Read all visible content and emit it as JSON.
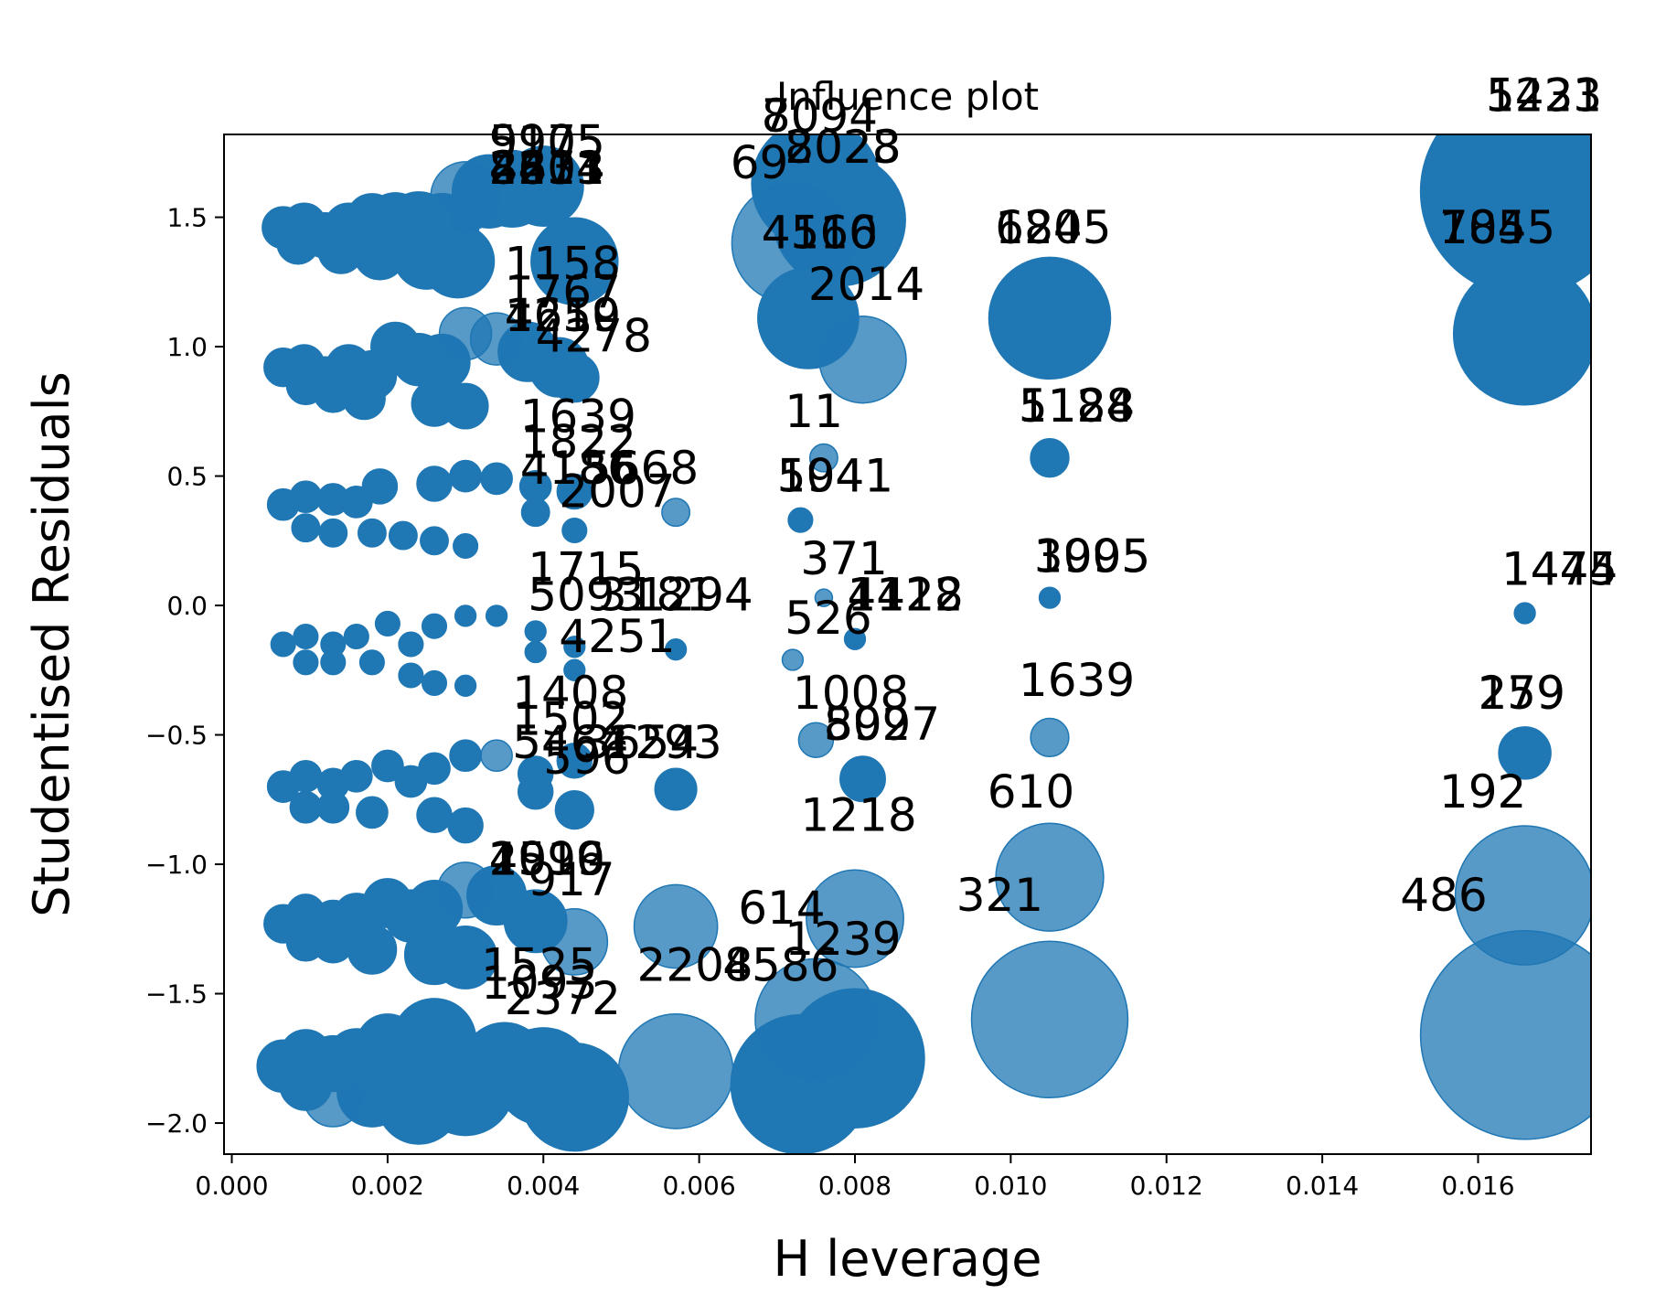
{
  "chart_data": {
    "type": "scatter",
    "title": "Influence plot",
    "xlabel": "H leverage",
    "ylabel": "Studentised Residuals",
    "xlim": [
      -0.0001,
      0.01745
    ],
    "ylim": [
      -2.12,
      1.82
    ],
    "xticks": [
      0.0,
      0.002,
      0.004,
      0.006,
      0.008,
      0.01,
      0.012,
      0.014,
      0.016
    ],
    "xtick_labels": [
      "0.000",
      "0.002",
      "0.004",
      "0.006",
      "0.008",
      "0.010",
      "0.012",
      "0.014",
      "0.016"
    ],
    "yticks": [
      -2.0,
      -1.5,
      -1.0,
      -0.5,
      0.0,
      0.5,
      1.0,
      1.5
    ],
    "ytick_labels": [
      "−2.0",
      "−1.5",
      "−1.0",
      "−0.5",
      "0.0",
      "0.5",
      "1.0",
      "1.5"
    ],
    "grid": false,
    "marker_color": "#1f77b4",
    "points": [
      {
        "x": 0.00066,
        "y": 1.46,
        "s": 0.24
      },
      {
        "x": 0.00093,
        "y": 1.47,
        "s": 0.25
      },
      {
        "x": 0.0012,
        "y": 1.43,
        "s": 0.26
      },
      {
        "x": 0.0015,
        "y": 1.46,
        "s": 0.28
      },
      {
        "x": 0.0018,
        "y": 1.49,
        "s": 0.3
      },
      {
        "x": 0.0021,
        "y": 1.48,
        "s": 0.34
      },
      {
        "x": 0.0024,
        "y": 1.47,
        "s": 0.38
      },
      {
        "x": 0.0027,
        "y": 1.45,
        "s": 0.42
      },
      {
        "x": 0.003,
        "y": 1.58,
        "s": 0.4,
        "a": 0.75
      },
      {
        "x": 0.0033,
        "y": 1.6,
        "s": 0.42
      },
      {
        "x": 0.0036,
        "y": 1.61,
        "s": 0.44
      },
      {
        "x": 0.004,
        "y": 1.62,
        "s": 0.46
      },
      {
        "x": 0.00085,
        "y": 1.4,
        "s": 0.24
      },
      {
        "x": 0.0014,
        "y": 1.37,
        "s": 0.26
      },
      {
        "x": 0.0019,
        "y": 1.36,
        "s": 0.3
      },
      {
        "x": 0.0025,
        "y": 1.35,
        "s": 0.38
      },
      {
        "x": 0.0029,
        "y": 1.33,
        "s": 0.42
      },
      {
        "x": 0.0044,
        "y": 1.33,
        "s": 0.5
      },
      {
        "x": 0.0072,
        "y": 1.4,
        "s": 0.7,
        "a": 0.75
      },
      {
        "x": 0.0075,
        "y": 1.63,
        "s": 0.74
      },
      {
        "x": 0.0078,
        "y": 1.49,
        "s": 0.76
      },
      {
        "x": 0.0074,
        "y": 1.11,
        "s": 0.58
      },
      {
        "x": 0.0081,
        "y": 0.95,
        "s": 0.5,
        "a": 0.75
      },
      {
        "x": 0.0105,
        "y": 1.11,
        "s": 0.7
      },
      {
        "x": 0.0166,
        "y": 1.6,
        "s": 1.2
      },
      {
        "x": 0.0166,
        "y": 1.05,
        "s": 0.82
      },
      {
        "x": 0.00066,
        "y": 0.92,
        "s": 0.22
      },
      {
        "x": 0.00093,
        "y": 0.93,
        "s": 0.23
      },
      {
        "x": 0.0012,
        "y": 0.88,
        "s": 0.24
      },
      {
        "x": 0.0015,
        "y": 0.92,
        "s": 0.26
      },
      {
        "x": 0.0018,
        "y": 0.89,
        "s": 0.28
      },
      {
        "x": 0.0021,
        "y": 1.0,
        "s": 0.28
      },
      {
        "x": 0.0024,
        "y": 0.95,
        "s": 0.3
      },
      {
        "x": 0.0027,
        "y": 0.94,
        "s": 0.32
      },
      {
        "x": 0.003,
        "y": 1.05,
        "s": 0.3,
        "a": 0.75
      },
      {
        "x": 0.0034,
        "y": 1.03,
        "s": 0.3,
        "a": 0.75
      },
      {
        "x": 0.0038,
        "y": 0.98,
        "s": 0.34
      },
      {
        "x": 0.0042,
        "y": 0.92,
        "s": 0.34
      },
      {
        "x": 0.00095,
        "y": 0.85,
        "s": 0.22
      },
      {
        "x": 0.0013,
        "y": 0.82,
        "s": 0.22
      },
      {
        "x": 0.0017,
        "y": 0.8,
        "s": 0.24
      },
      {
        "x": 0.0026,
        "y": 0.78,
        "s": 0.26
      },
      {
        "x": 0.003,
        "y": 0.77,
        "s": 0.26
      },
      {
        "x": 0.0044,
        "y": 0.88,
        "s": 0.28
      },
      {
        "x": 0.00066,
        "y": 0.39,
        "s": 0.18
      },
      {
        "x": 0.00095,
        "y": 0.42,
        "s": 0.18
      },
      {
        "x": 0.0013,
        "y": 0.41,
        "s": 0.18
      },
      {
        "x": 0.0016,
        "y": 0.4,
        "s": 0.18
      },
      {
        "x": 0.0019,
        "y": 0.46,
        "s": 0.2
      },
      {
        "x": 0.0026,
        "y": 0.47,
        "s": 0.2
      },
      {
        "x": 0.003,
        "y": 0.5,
        "s": 0.18
      },
      {
        "x": 0.0034,
        "y": 0.49,
        "s": 0.18
      },
      {
        "x": 0.0039,
        "y": 0.46,
        "s": 0.18
      },
      {
        "x": 0.0044,
        "y": 0.44,
        "s": 0.2
      },
      {
        "x": 0.00095,
        "y": 0.3,
        "s": 0.16
      },
      {
        "x": 0.0013,
        "y": 0.28,
        "s": 0.16
      },
      {
        "x": 0.0018,
        "y": 0.28,
        "s": 0.16
      },
      {
        "x": 0.0022,
        "y": 0.27,
        "s": 0.16
      },
      {
        "x": 0.0026,
        "y": 0.25,
        "s": 0.16
      },
      {
        "x": 0.003,
        "y": 0.23,
        "s": 0.14
      },
      {
        "x": 0.0039,
        "y": 0.36,
        "s": 0.16
      },
      {
        "x": 0.0044,
        "y": 0.29,
        "s": 0.14
      },
      {
        "x": 0.0057,
        "y": 0.36,
        "s": 0.16,
        "a": 0.75
      },
      {
        "x": 0.0073,
        "y": 0.33,
        "s": 0.14
      },
      {
        "x": 0.0076,
        "y": 0.57,
        "s": 0.16,
        "a": 0.75
      },
      {
        "x": 0.0105,
        "y": 0.57,
        "s": 0.22
      },
      {
        "x": 0.00066,
        "y": -0.15,
        "s": 0.14
      },
      {
        "x": 0.00095,
        "y": -0.12,
        "s": 0.14
      },
      {
        "x": 0.0013,
        "y": -0.15,
        "s": 0.14
      },
      {
        "x": 0.0016,
        "y": -0.12,
        "s": 0.14
      },
      {
        "x": 0.002,
        "y": -0.07,
        "s": 0.14
      },
      {
        "x": 0.0023,
        "y": -0.15,
        "s": 0.14
      },
      {
        "x": 0.0026,
        "y": -0.08,
        "s": 0.14
      },
      {
        "x": 0.003,
        "y": -0.04,
        "s": 0.12
      },
      {
        "x": 0.0034,
        "y": -0.04,
        "s": 0.12
      },
      {
        "x": 0.0039,
        "y": -0.1,
        "s": 0.12
      },
      {
        "x": 0.0044,
        "y": -0.16,
        "s": 0.12
      },
      {
        "x": 0.00095,
        "y": -0.22,
        "s": 0.14
      },
      {
        "x": 0.0013,
        "y": -0.22,
        "s": 0.14
      },
      {
        "x": 0.0018,
        "y": -0.22,
        "s": 0.14
      },
      {
        "x": 0.0023,
        "y": -0.27,
        "s": 0.14
      },
      {
        "x": 0.0026,
        "y": -0.3,
        "s": 0.14
      },
      {
        "x": 0.003,
        "y": -0.31,
        "s": 0.12
      },
      {
        "x": 0.0039,
        "y": -0.18,
        "s": 0.12
      },
      {
        "x": 0.0044,
        "y": -0.25,
        "s": 0.12
      },
      {
        "x": 0.0057,
        "y": -0.17,
        "s": 0.12
      },
      {
        "x": 0.0072,
        "y": -0.21,
        "s": 0.12,
        "a": 0.75
      },
      {
        "x": 0.0076,
        "y": 0.03,
        "s": 0.1,
        "a": 0.75
      },
      {
        "x": 0.008,
        "y": -0.13,
        "s": 0.12
      },
      {
        "x": 0.0105,
        "y": 0.03,
        "s": 0.12
      },
      {
        "x": 0.0166,
        "y": -0.03,
        "s": 0.12
      },
      {
        "x": 0.00066,
        "y": -0.7,
        "s": 0.18
      },
      {
        "x": 0.00095,
        "y": -0.66,
        "s": 0.18
      },
      {
        "x": 0.0013,
        "y": -0.69,
        "s": 0.18
      },
      {
        "x": 0.0016,
        "y": -0.66,
        "s": 0.18
      },
      {
        "x": 0.002,
        "y": -0.62,
        "s": 0.18
      },
      {
        "x": 0.0023,
        "y": -0.68,
        "s": 0.18
      },
      {
        "x": 0.0026,
        "y": -0.63,
        "s": 0.18
      },
      {
        "x": 0.003,
        "y": -0.58,
        "s": 0.18
      },
      {
        "x": 0.0034,
        "y": -0.58,
        "s": 0.18,
        "a": 0.75
      },
      {
        "x": 0.0039,
        "y": -0.65,
        "s": 0.2
      },
      {
        "x": 0.0044,
        "y": -0.6,
        "s": 0.2
      },
      {
        "x": 0.00095,
        "y": -0.78,
        "s": 0.18
      },
      {
        "x": 0.0013,
        "y": -0.78,
        "s": 0.18
      },
      {
        "x": 0.0018,
        "y": -0.8,
        "s": 0.18
      },
      {
        "x": 0.0026,
        "y": -0.81,
        "s": 0.2
      },
      {
        "x": 0.003,
        "y": -0.85,
        "s": 0.2
      },
      {
        "x": 0.0039,
        "y": -0.72,
        "s": 0.2
      },
      {
        "x": 0.0044,
        "y": -0.79,
        "s": 0.22
      },
      {
        "x": 0.0057,
        "y": -0.71,
        "s": 0.24
      },
      {
        "x": 0.0075,
        "y": -0.52,
        "s": 0.2,
        "a": 0.75
      },
      {
        "x": 0.0081,
        "y": -0.67,
        "s": 0.26
      },
      {
        "x": 0.0105,
        "y": -0.51,
        "s": 0.22,
        "a": 0.75
      },
      {
        "x": 0.0166,
        "y": -0.57,
        "s": 0.3
      },
      {
        "x": 0.00066,
        "y": -1.23,
        "s": 0.22
      },
      {
        "x": 0.00095,
        "y": -1.19,
        "s": 0.22
      },
      {
        "x": 0.0013,
        "y": -1.22,
        "s": 0.24
      },
      {
        "x": 0.0016,
        "y": -1.2,
        "s": 0.26
      },
      {
        "x": 0.002,
        "y": -1.15,
        "s": 0.28
      },
      {
        "x": 0.0023,
        "y": -1.2,
        "s": 0.3
      },
      {
        "x": 0.0026,
        "y": -1.17,
        "s": 0.32
      },
      {
        "x": 0.003,
        "y": -1.1,
        "s": 0.32,
        "a": 0.75
      },
      {
        "x": 0.0034,
        "y": -1.12,
        "s": 0.34
      },
      {
        "x": 0.0039,
        "y": -1.22,
        "s": 0.36
      },
      {
        "x": 0.0044,
        "y": -1.3,
        "s": 0.38,
        "a": 0.75
      },
      {
        "x": 0.00095,
        "y": -1.3,
        "s": 0.22
      },
      {
        "x": 0.0013,
        "y": -1.3,
        "s": 0.24
      },
      {
        "x": 0.0018,
        "y": -1.33,
        "s": 0.28
      },
      {
        "x": 0.0026,
        "y": -1.35,
        "s": 0.34
      },
      {
        "x": 0.003,
        "y": -1.36,
        "s": 0.36
      },
      {
        "x": 0.0057,
        "y": -1.24,
        "s": 0.48,
        "a": 0.75
      },
      {
        "x": 0.008,
        "y": -1.21,
        "s": 0.56,
        "a": 0.75
      },
      {
        "x": 0.0105,
        "y": -1.05,
        "s": 0.62,
        "a": 0.75
      },
      {
        "x": 0.0166,
        "y": -1.12,
        "s": 0.8,
        "a": 0.75
      },
      {
        "x": 0.00066,
        "y": -1.78,
        "s": 0.3
      },
      {
        "x": 0.00095,
        "y": -1.74,
        "s": 0.3
      },
      {
        "x": 0.0013,
        "y": -1.77,
        "s": 0.32
      },
      {
        "x": 0.0016,
        "y": -1.75,
        "s": 0.34
      },
      {
        "x": 0.002,
        "y": -1.7,
        "s": 0.36
      },
      {
        "x": 0.0023,
        "y": -1.73,
        "s": 0.4
      },
      {
        "x": 0.0026,
        "y": -1.68,
        "s": 0.48
      },
      {
        "x": 0.003,
        "y": -1.86,
        "s": 0.56
      },
      {
        "x": 0.0035,
        "y": -1.78,
        "s": 0.5
      },
      {
        "x": 0.004,
        "y": -1.82,
        "s": 0.56
      },
      {
        "x": 0.0044,
        "y": -1.9,
        "s": 0.62
      },
      {
        "x": 0.00095,
        "y": -1.85,
        "s": 0.3
      },
      {
        "x": 0.0013,
        "y": -1.9,
        "s": 0.34,
        "a": 0.75
      },
      {
        "x": 0.0018,
        "y": -1.88,
        "s": 0.4
      },
      {
        "x": 0.0024,
        "y": -1.92,
        "s": 0.48
      },
      {
        "x": 0.0057,
        "y": -1.8,
        "s": 0.66,
        "a": 0.75
      },
      {
        "x": 0.0075,
        "y": -1.6,
        "s": 0.7,
        "a": 0.75
      },
      {
        "x": 0.0073,
        "y": -1.85,
        "s": 0.8
      },
      {
        "x": 0.008,
        "y": -1.75,
        "s": 0.8
      },
      {
        "x": 0.0105,
        "y": -1.6,
        "s": 0.9,
        "a": 0.75
      },
      {
        "x": 0.0166,
        "y": -1.66,
        "s": 1.2,
        "a": 0.75
      }
    ],
    "annotations": [
      {
        "text": "5231",
        "x": 0.0161,
        "y": 1.91
      },
      {
        "text": "1423",
        "x": 0.0161,
        "y": 1.91
      },
      {
        "text": "8094",
        "x": 0.0068,
        "y": 1.83
      },
      {
        "text": "709",
        "x": 0.0068,
        "y": 1.83
      },
      {
        "text": "5905",
        "x": 0.0033,
        "y": 1.73
      },
      {
        "text": "9175",
        "x": 0.0033,
        "y": 1.73
      },
      {
        "text": "8023",
        "x": 0.0071,
        "y": 1.71
      },
      {
        "text": "2028",
        "x": 0.0071,
        "y": 1.71
      },
      {
        "text": "69",
        "x": 0.0064,
        "y": 1.65
      },
      {
        "text": "8403",
        "x": 0.0033,
        "y": 1.63
      },
      {
        "text": "2834",
        "x": 0.0033,
        "y": 1.63
      },
      {
        "text": "4674",
        "x": 0.0033,
        "y": 1.63
      },
      {
        "text": "2211",
        "x": 0.0033,
        "y": 1.63
      },
      {
        "text": "624",
        "x": 0.0098,
        "y": 1.4
      },
      {
        "text": "1805",
        "x": 0.0098,
        "y": 1.4
      },
      {
        "text": "785",
        "x": 0.0155,
        "y": 1.4
      },
      {
        "text": "1045",
        "x": 0.0155,
        "y": 1.4
      },
      {
        "text": "4516",
        "x": 0.0068,
        "y": 1.38
      },
      {
        "text": "4160",
        "x": 0.0068,
        "y": 1.38
      },
      {
        "text": "1158",
        "x": 0.0035,
        "y": 1.26
      },
      {
        "text": "2014",
        "x": 0.0074,
        "y": 1.18
      },
      {
        "text": "1767",
        "x": 0.0035,
        "y": 1.15
      },
      {
        "text": "4219",
        "x": 0.0035,
        "y": 1.06
      },
      {
        "text": "1650",
        "x": 0.0035,
        "y": 1.06
      },
      {
        "text": "4278",
        "x": 0.0039,
        "y": 0.98
      },
      {
        "text": "5128",
        "x": 0.0101,
        "y": 0.71
      },
      {
        "text": "1184",
        "x": 0.0101,
        "y": 0.71
      },
      {
        "text": "11",
        "x": 0.0071,
        "y": 0.69
      },
      {
        "text": "1639",
        "x": 0.0037,
        "y": 0.67
      },
      {
        "text": "1822",
        "x": 0.0037,
        "y": 0.57
      },
      {
        "text": "4186",
        "x": 0.0037,
        "y": 0.47
      },
      {
        "text": "5668",
        "x": 0.0045,
        "y": 0.47
      },
      {
        "text": "5941",
        "x": 0.007,
        "y": 0.44
      },
      {
        "text": "1041",
        "x": 0.007,
        "y": 0.44
      },
      {
        "text": "2007",
        "x": 0.0042,
        "y": 0.38
      },
      {
        "text": "1995",
        "x": 0.0103,
        "y": 0.13
      },
      {
        "text": "3005",
        "x": 0.0103,
        "y": 0.13
      },
      {
        "text": "371",
        "x": 0.0073,
        "y": 0.12
      },
      {
        "text": "1715",
        "x": 0.0038,
        "y": 0.08
      },
      {
        "text": "1444",
        "x": 0.0163,
        "y": 0.08
      },
      {
        "text": "1475",
        "x": 0.0163,
        "y": 0.08
      },
      {
        "text": "4112",
        "x": 0.0079,
        "y": -0.02
      },
      {
        "text": "1428",
        "x": 0.0079,
        "y": -0.02
      },
      {
        "text": "5093",
        "x": 0.0038,
        "y": -0.02
      },
      {
        "text": "3181",
        "x": 0.0047,
        "y": -0.02
      },
      {
        "text": "1294",
        "x": 0.0052,
        "y": -0.02
      },
      {
        "text": "526",
        "x": 0.0071,
        "y": -0.11
      },
      {
        "text": "4251",
        "x": 0.0042,
        "y": -0.18
      },
      {
        "text": "1408",
        "x": 0.0036,
        "y": -0.4
      },
      {
        "text": "1008",
        "x": 0.0072,
        "y": -0.4
      },
      {
        "text": "1639",
        "x": 0.0101,
        "y": -0.35
      },
      {
        "text": "1502",
        "x": 0.0036,
        "y": -0.5
      },
      {
        "text": "159",
        "x": 0.016,
        "y": -0.4
      },
      {
        "text": "279",
        "x": 0.016,
        "y": -0.4
      },
      {
        "text": "892",
        "x": 0.0076,
        "y": -0.52
      },
      {
        "text": "5097",
        "x": 0.0076,
        "y": -0.52
      },
      {
        "text": "5464",
        "x": 0.0036,
        "y": -0.59
      },
      {
        "text": "1293",
        "x": 0.0048,
        "y": -0.59
      },
      {
        "text": "3654",
        "x": 0.0045,
        "y": -0.59
      },
      {
        "text": "596",
        "x": 0.004,
        "y": -0.65
      },
      {
        "text": "610",
        "x": 0.0097,
        "y": -0.78
      },
      {
        "text": "192",
        "x": 0.0155,
        "y": -0.78
      },
      {
        "text": "1218",
        "x": 0.0073,
        "y": -0.87
      },
      {
        "text": "2016",
        "x": 0.0033,
        "y": -1.04
      },
      {
        "text": "4599",
        "x": 0.0033,
        "y": -1.04
      },
      {
        "text": "1910",
        "x": 0.0033,
        "y": -1.04
      },
      {
        "text": "917",
        "x": 0.0038,
        "y": -1.12
      },
      {
        "text": "321",
        "x": 0.0093,
        "y": -1.18
      },
      {
        "text": "486",
        "x": 0.015,
        "y": -1.18
      },
      {
        "text": "614",
        "x": 0.0065,
        "y": -1.23
      },
      {
        "text": "1239",
        "x": 0.0071,
        "y": -1.35
      },
      {
        "text": "1525",
        "x": 0.0032,
        "y": -1.45
      },
      {
        "text": "2208",
        "x": 0.0052,
        "y": -1.45
      },
      {
        "text": "4586",
        "x": 0.0063,
        "y": -1.45
      },
      {
        "text": "1093",
        "x": 0.0032,
        "y": -1.52
      },
      {
        "text": "2372",
        "x": 0.0035,
        "y": -1.58
      }
    ]
  }
}
